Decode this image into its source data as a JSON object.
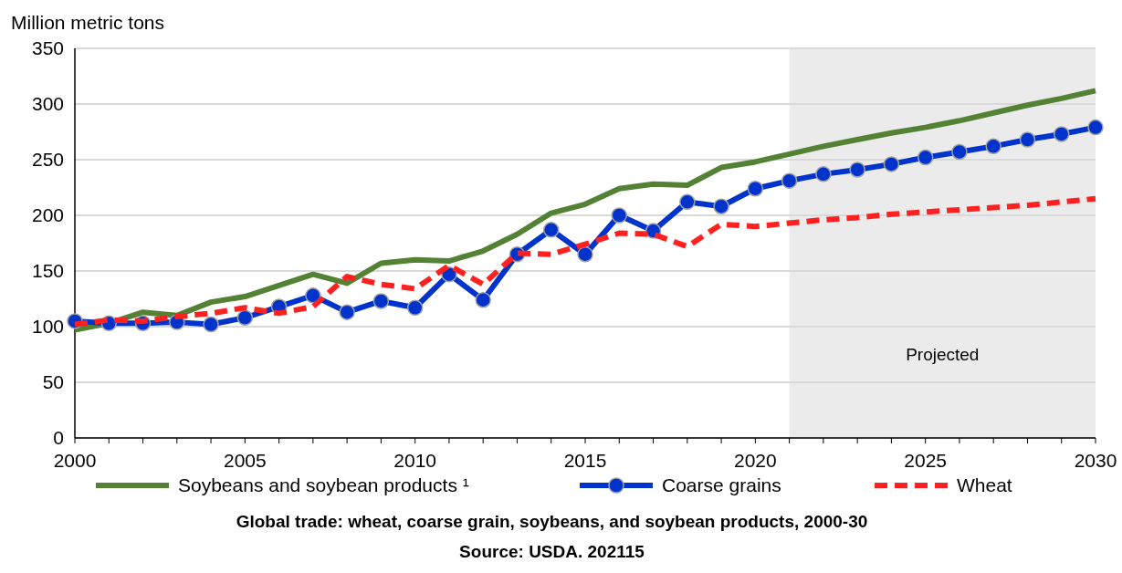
{
  "chart_data": {
    "type": "line",
    "title": "Global trade: wheat, coarse grain, soybeans, and soybean products, 2000-30",
    "annotations": [
      "Source: USDA. 202115"
    ],
    "ylabel": "Million metric tons",
    "x": [
      2000,
      2001,
      2002,
      2003,
      2004,
      2005,
      2006,
      2007,
      2008,
      2009,
      2010,
      2011,
      2012,
      2013,
      2014,
      2015,
      2016,
      2017,
      2018,
      2019,
      2020,
      2021,
      2022,
      2023,
      2024,
      2025,
      2026,
      2027,
      2028,
      2029,
      2030
    ],
    "xlim": [
      2000,
      2030
    ],
    "xticks": [
      2000,
      2005,
      2010,
      2015,
      2020,
      2025,
      2030
    ],
    "ylim": [
      0,
      350
    ],
    "yticks": [
      0,
      50,
      100,
      150,
      200,
      250,
      300,
      350
    ],
    "grid": "y",
    "legend": "bottom",
    "bands": [
      {
        "axis": "x",
        "from": 2021,
        "to": 2030,
        "label": "Projected",
        "color": "#ebebeb"
      }
    ],
    "series": [
      {
        "name": "Soybeans and soybean products ¹",
        "color": "#548235",
        "line_style": "solid",
        "marker": "none",
        "values": [
          97,
          103,
          113,
          110,
          122,
          127,
          137,
          147,
          139,
          157,
          160,
          159,
          168,
          183,
          202,
          210,
          224,
          228,
          227,
          243,
          248,
          255,
          262,
          268,
          274,
          279,
          285,
          292,
          299,
          305,
          312
        ]
      },
      {
        "name": "Coarse grains",
        "color": "#0033cc",
        "line_style": "solid",
        "marker": "circle",
        "values": [
          105,
          103,
          103,
          104,
          102,
          108,
          118,
          128,
          113,
          123,
          117,
          147,
          124,
          165,
          187,
          165,
          200,
          186,
          212,
          208,
          224,
          231,
          237,
          241,
          246,
          252,
          257,
          262,
          268,
          273,
          279
        ]
      },
      {
        "name": "Wheat",
        "color": "#ff2020",
        "line_style": "dashed",
        "marker": "none",
        "values": [
          102,
          106,
          105,
          109,
          112,
          117,
          112,
          118,
          145,
          138,
          134,
          155,
          138,
          166,
          165,
          174,
          184,
          183,
          172,
          192,
          190,
          193,
          196,
          198,
          201,
          203,
          205,
          207,
          209,
          212,
          215
        ]
      }
    ]
  }
}
